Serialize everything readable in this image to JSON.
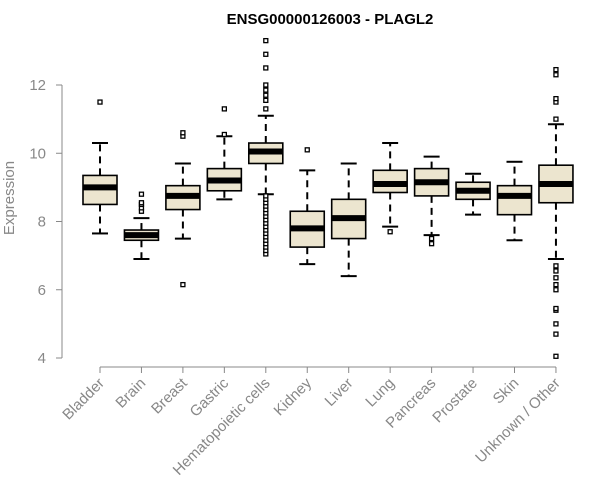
{
  "chart_data": {
    "type": "boxplot",
    "title": "ENSG00000126003 - PLAGL2",
    "ylabel": "Expression",
    "xlabel": "",
    "ylim": [
      3.9,
      13.4
    ],
    "yticks": [
      4,
      6,
      8,
      10,
      12
    ],
    "categories": [
      "Bladder",
      "Brain",
      "Breast",
      "Gastric",
      "Hematopoietic cells",
      "Kidney",
      "Liver",
      "Lung",
      "Pancreas",
      "Prostate",
      "Skin",
      "Unknown / Other"
    ],
    "boxes": [
      {
        "category": "Bladder",
        "whisker_low": 7.65,
        "q1": 8.5,
        "median": 9.0,
        "q3": 9.35,
        "whisker_high": 10.3,
        "outliers": [
          11.5
        ]
      },
      {
        "category": "Brain",
        "whisker_low": 6.9,
        "q1": 7.45,
        "median": 7.6,
        "q3": 7.75,
        "whisker_high": 8.1,
        "outliers": [
          8.3,
          8.4,
          8.5,
          8.55,
          8.8
        ]
      },
      {
        "category": "Breast",
        "whisker_low": 7.5,
        "q1": 8.35,
        "median": 8.75,
        "q3": 9.05,
        "whisker_high": 9.7,
        "outliers": [
          6.15,
          10.5,
          10.6
        ]
      },
      {
        "category": "Gastric",
        "whisker_low": 8.65,
        "q1": 8.9,
        "median": 9.2,
        "q3": 9.55,
        "whisker_high": 10.5,
        "outliers": [
          10.55,
          11.3
        ]
      },
      {
        "category": "Hematopoietic cells",
        "whisker_low": 8.8,
        "q1": 9.7,
        "median": 10.05,
        "q3": 10.3,
        "whisker_high": 11.1,
        "outliers": [
          7.05,
          7.15,
          7.25,
          7.35,
          7.45,
          7.55,
          7.65,
          7.75,
          7.85,
          7.95,
          8.05,
          8.15,
          8.25,
          8.35,
          8.45,
          8.55,
          8.65,
          8.75,
          11.3,
          11.55,
          11.7,
          11.85,
          12.0,
          12.5,
          12.9,
          13.3
        ]
      },
      {
        "category": "Kidney",
        "whisker_low": 6.75,
        "q1": 7.25,
        "median": 7.8,
        "q3": 8.3,
        "whisker_high": 9.5,
        "outliers": [
          10.1
        ]
      },
      {
        "category": "Liver",
        "whisker_low": 6.4,
        "q1": 7.5,
        "median": 8.1,
        "q3": 8.65,
        "whisker_high": 9.7,
        "outliers": []
      },
      {
        "category": "Lung",
        "whisker_low": 7.85,
        "q1": 8.85,
        "median": 9.1,
        "q3": 9.5,
        "whisker_high": 10.3,
        "outliers": [
          7.7
        ]
      },
      {
        "category": "Pancreas",
        "whisker_low": 7.6,
        "q1": 8.75,
        "median": 9.15,
        "q3": 9.55,
        "whisker_high": 9.9,
        "outliers": [
          7.35,
          7.5
        ]
      },
      {
        "category": "Prostate",
        "whisker_low": 8.2,
        "q1": 8.65,
        "median": 8.9,
        "q3": 9.15,
        "whisker_high": 9.4,
        "outliers": []
      },
      {
        "category": "Skin",
        "whisker_low": 7.45,
        "q1": 8.2,
        "median": 8.75,
        "q3": 9.05,
        "whisker_high": 9.75,
        "outliers": []
      },
      {
        "category": "Unknown / Other",
        "whisker_low": 6.9,
        "q1": 8.55,
        "median": 9.1,
        "q3": 9.65,
        "whisker_high": 10.85,
        "outliers": [
          4.05,
          4.7,
          5.0,
          5.4,
          5.45,
          6.0,
          6.15,
          6.35,
          6.55,
          6.7,
          11.0,
          11.5,
          11.6,
          12.3,
          12.45
        ]
      }
    ],
    "colors": {
      "box_fill": "#ece5cf",
      "box_stroke": "#000000",
      "median": "#000000",
      "axis": "#888888",
      "text": "#888888"
    }
  }
}
